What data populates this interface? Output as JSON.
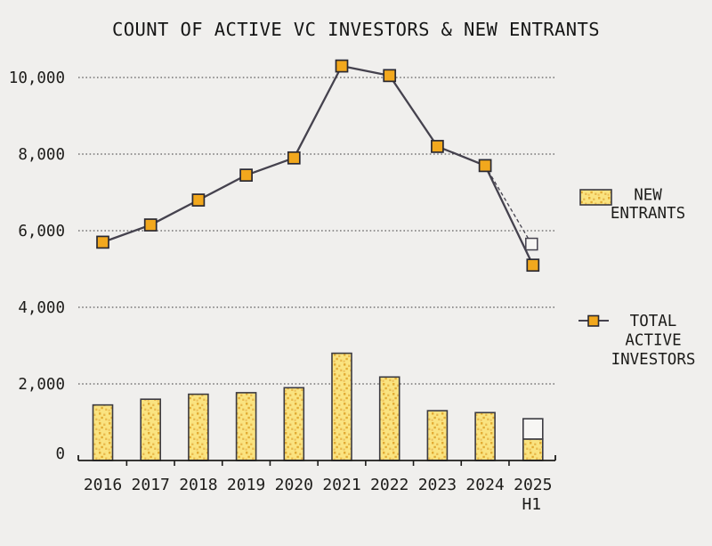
{
  "title": "COUNT OF ACTIVE VC INVESTORS & NEW ENTRANTS",
  "legend": {
    "new_entrants": {
      "line1": "NEW",
      "line2": "ENTRANTS"
    },
    "total_active": {
      "line1": "TOTAL",
      "line2": "ACTIVE",
      "line3": "INVESTORS"
    }
  },
  "colors": {
    "background": "#f0efed",
    "text": "#1d1c1a",
    "line": "#45424e",
    "marker_fill": "#f2a81d",
    "marker_stroke": "#2a2932",
    "bar_fill": "#fae380",
    "bar_dot": "#e2ac35",
    "bar_stroke": "#3c3b42",
    "grid": "#3a3a3a",
    "projection_fill": "#f7f6f4"
  },
  "chart_data": {
    "type": "combo-bar-line",
    "title": "COUNT OF ACTIVE VC INVESTORS & NEW ENTRANTS",
    "categories": [
      "2016",
      "2017",
      "2018",
      "2019",
      "2020",
      "2021",
      "2022",
      "2023",
      "2024",
      "2025\nH1"
    ],
    "series": [
      {
        "name": "NEW ENTRANTS",
        "type": "bar",
        "values": [
          1450,
          1600,
          1730,
          1770,
          1900,
          2800,
          2180,
          1300,
          1250,
          560
        ]
      },
      {
        "name": "TOTAL ACTIVE INVESTORS",
        "type": "line",
        "values": [
          5700,
          6150,
          6800,
          7450,
          7900,
          10300,
          10050,
          8200,
          7700,
          5100
        ]
      }
    ],
    "projection_2025": {
      "bar_total_value": 1090,
      "line_value": 5650,
      "note": "white-outlined annualized projection, dashed connector from 2024"
    },
    "yticks": [
      0,
      2000,
      4000,
      6000,
      8000,
      10000
    ],
    "ylim": [
      0,
      10600
    ],
    "grid": "horizontal dotted",
    "legend_position": "right"
  }
}
